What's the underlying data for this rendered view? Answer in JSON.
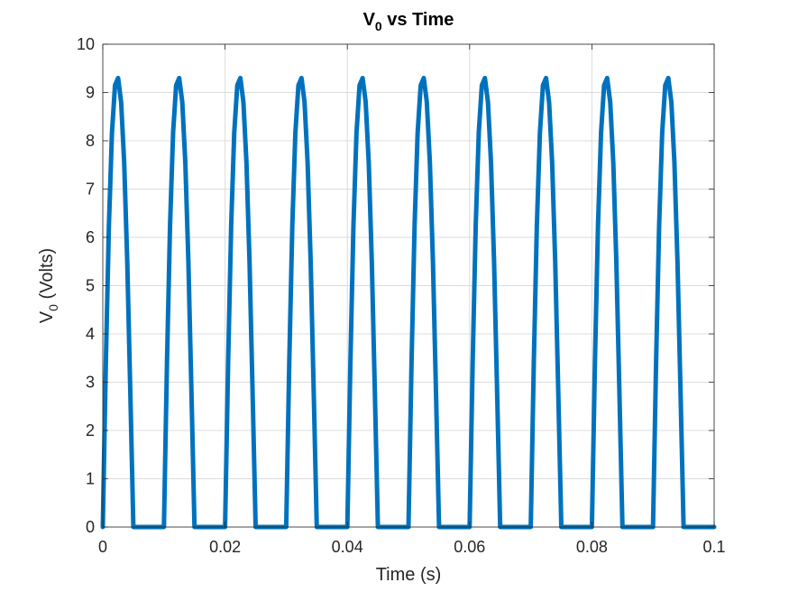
{
  "chart_data": {
    "type": "line",
    "title": {
      "main": "V",
      "sub": "0",
      "rest": " vs Time"
    },
    "xlabel": "Time (s)",
    "ylabel": {
      "main": "V",
      "sub": "0",
      "rest": " (Volts)"
    },
    "xlim": [
      0,
      0.1
    ],
    "ylim": [
      0,
      10
    ],
    "xticks": [
      0,
      0.02,
      0.04,
      0.06,
      0.08,
      0.1
    ],
    "xtick_labels": [
      "0",
      "0.02",
      "0.04",
      "0.06",
      "0.08",
      "0.1"
    ],
    "yticks": [
      0,
      1,
      2,
      3,
      4,
      5,
      6,
      7,
      8,
      9,
      10
    ],
    "ytick_labels": [
      "0",
      "1",
      "2",
      "3",
      "4",
      "5",
      "6",
      "7",
      "8",
      "9",
      "10"
    ],
    "grid": true,
    "series": [
      {
        "color": "#0072BD",
        "x": [
          0,
          0.0005,
          0.001,
          0.0015,
          0.002,
          0.0025,
          0.003,
          0.0035,
          0.004,
          0.0045,
          0.005,
          0.0055,
          0.006,
          0.0065,
          0.007,
          0.0075,
          0.008,
          0.0085,
          0.009,
          0.0095,
          0.01,
          0.0105,
          0.011,
          0.0115,
          0.012,
          0.0125,
          0.013,
          0.0135,
          0.014,
          0.0145,
          0.015,
          0.0155,
          0.016,
          0.0165,
          0.017,
          0.0175,
          0.018,
          0.0185,
          0.019,
          0.0195,
          0.02,
          0.0205,
          0.021,
          0.0215,
          0.022,
          0.0225,
          0.023,
          0.0235,
          0.024,
          0.0245,
          0.025,
          0.0255,
          0.026,
          0.0265,
          0.027,
          0.0275,
          0.028,
          0.0285,
          0.029,
          0.0295,
          0.03,
          0.0305,
          0.031,
          0.0315,
          0.032,
          0.0325,
          0.033,
          0.0335,
          0.034,
          0.0345,
          0.035,
          0.0355,
          0.036,
          0.0365,
          0.037,
          0.0375,
          0.038,
          0.0385,
          0.039,
          0.0395,
          0.04,
          0.0405,
          0.041,
          0.0415,
          0.042,
          0.0425,
          0.043,
          0.0435,
          0.044,
          0.0445,
          0.045,
          0.0455,
          0.046,
          0.0465,
          0.047,
          0.0475,
          0.048,
          0.0485,
          0.049,
          0.0495,
          0.05,
          0.0505,
          0.051,
          0.0515,
          0.052,
          0.0525,
          0.053,
          0.0535,
          0.054,
          0.0545,
          0.055,
          0.0555,
          0.056,
          0.0565,
          0.057,
          0.0575,
          0.058,
          0.0585,
          0.059,
          0.0595,
          0.06,
          0.0605,
          0.061,
          0.0615,
          0.062,
          0.0625,
          0.063,
          0.0635,
          0.064,
          0.0645,
          0.065,
          0.0655,
          0.066,
          0.0665,
          0.067,
          0.0675,
          0.068,
          0.0685,
          0.069,
          0.0695,
          0.07,
          0.0705,
          0.071,
          0.0715,
          0.072,
          0.0725,
          0.073,
          0.0735,
          0.074,
          0.0745,
          0.075,
          0.0755,
          0.076,
          0.0765,
          0.077,
          0.0775,
          0.078,
          0.0785,
          0.079,
          0.0795,
          0.08,
          0.0805,
          0.081,
          0.0815,
          0.082,
          0.0825,
          0.083,
          0.0835,
          0.084,
          0.0845,
          0.085,
          0.0855,
          0.086,
          0.0865,
          0.087,
          0.0875,
          0.088,
          0.0885,
          0.089,
          0.0895,
          0.09,
          0.0905,
          0.091,
          0.0915,
          0.092,
          0.0925,
          0.093,
          0.0935,
          0.094,
          0.0945,
          0.095,
          0.0955,
          0.096,
          0.0965,
          0.097,
          0.0975,
          0.098,
          0.0985,
          0.099,
          0.0995,
          0.1
        ],
        "y": [
          0,
          3.41,
          6.25,
          8.17,
          9.15,
          9.3,
          8.8,
          7.55,
          5.5,
          2.8,
          0,
          0,
          0,
          0,
          0,
          0,
          0,
          0,
          0,
          0,
          0,
          3.41,
          6.25,
          8.17,
          9.15,
          9.3,
          8.8,
          7.55,
          5.5,
          2.8,
          0,
          0,
          0,
          0,
          0,
          0,
          0,
          0,
          0,
          0,
          0,
          3.41,
          6.25,
          8.17,
          9.15,
          9.3,
          8.8,
          7.55,
          5.5,
          2.8,
          0,
          0,
          0,
          0,
          0,
          0,
          0,
          0,
          0,
          0,
          0,
          3.41,
          6.25,
          8.17,
          9.15,
          9.3,
          8.8,
          7.55,
          5.5,
          2.8,
          0,
          0,
          0,
          0,
          0,
          0,
          0,
          0,
          0,
          0,
          0,
          3.41,
          6.25,
          8.17,
          9.15,
          9.3,
          8.8,
          7.55,
          5.5,
          2.8,
          0,
          0,
          0,
          0,
          0,
          0,
          0,
          0,
          0,
          0,
          0,
          3.41,
          6.25,
          8.17,
          9.15,
          9.3,
          8.8,
          7.55,
          5.5,
          2.8,
          0,
          0,
          0,
          0,
          0,
          0,
          0,
          0,
          0,
          0,
          0,
          3.41,
          6.25,
          8.17,
          9.15,
          9.3,
          8.8,
          7.55,
          5.5,
          2.8,
          0,
          0,
          0,
          0,
          0,
          0,
          0,
          0,
          0,
          0,
          0,
          3.41,
          6.25,
          8.17,
          9.15,
          9.3,
          8.8,
          7.55,
          5.5,
          2.8,
          0,
          0,
          0,
          0,
          0,
          0,
          0,
          0,
          0,
          0,
          0,
          3.41,
          6.25,
          8.17,
          9.15,
          9.3,
          8.8,
          7.55,
          5.5,
          2.8,
          0,
          0,
          0,
          0,
          0,
          0,
          0,
          0,
          0,
          0,
          0,
          3.41,
          6.25,
          8.17,
          9.15,
          9.3,
          8.8,
          7.55,
          5.5,
          2.8,
          0,
          0,
          0,
          0,
          0,
          0,
          0,
          0,
          0,
          0,
          0
        ]
      }
    ]
  }
}
